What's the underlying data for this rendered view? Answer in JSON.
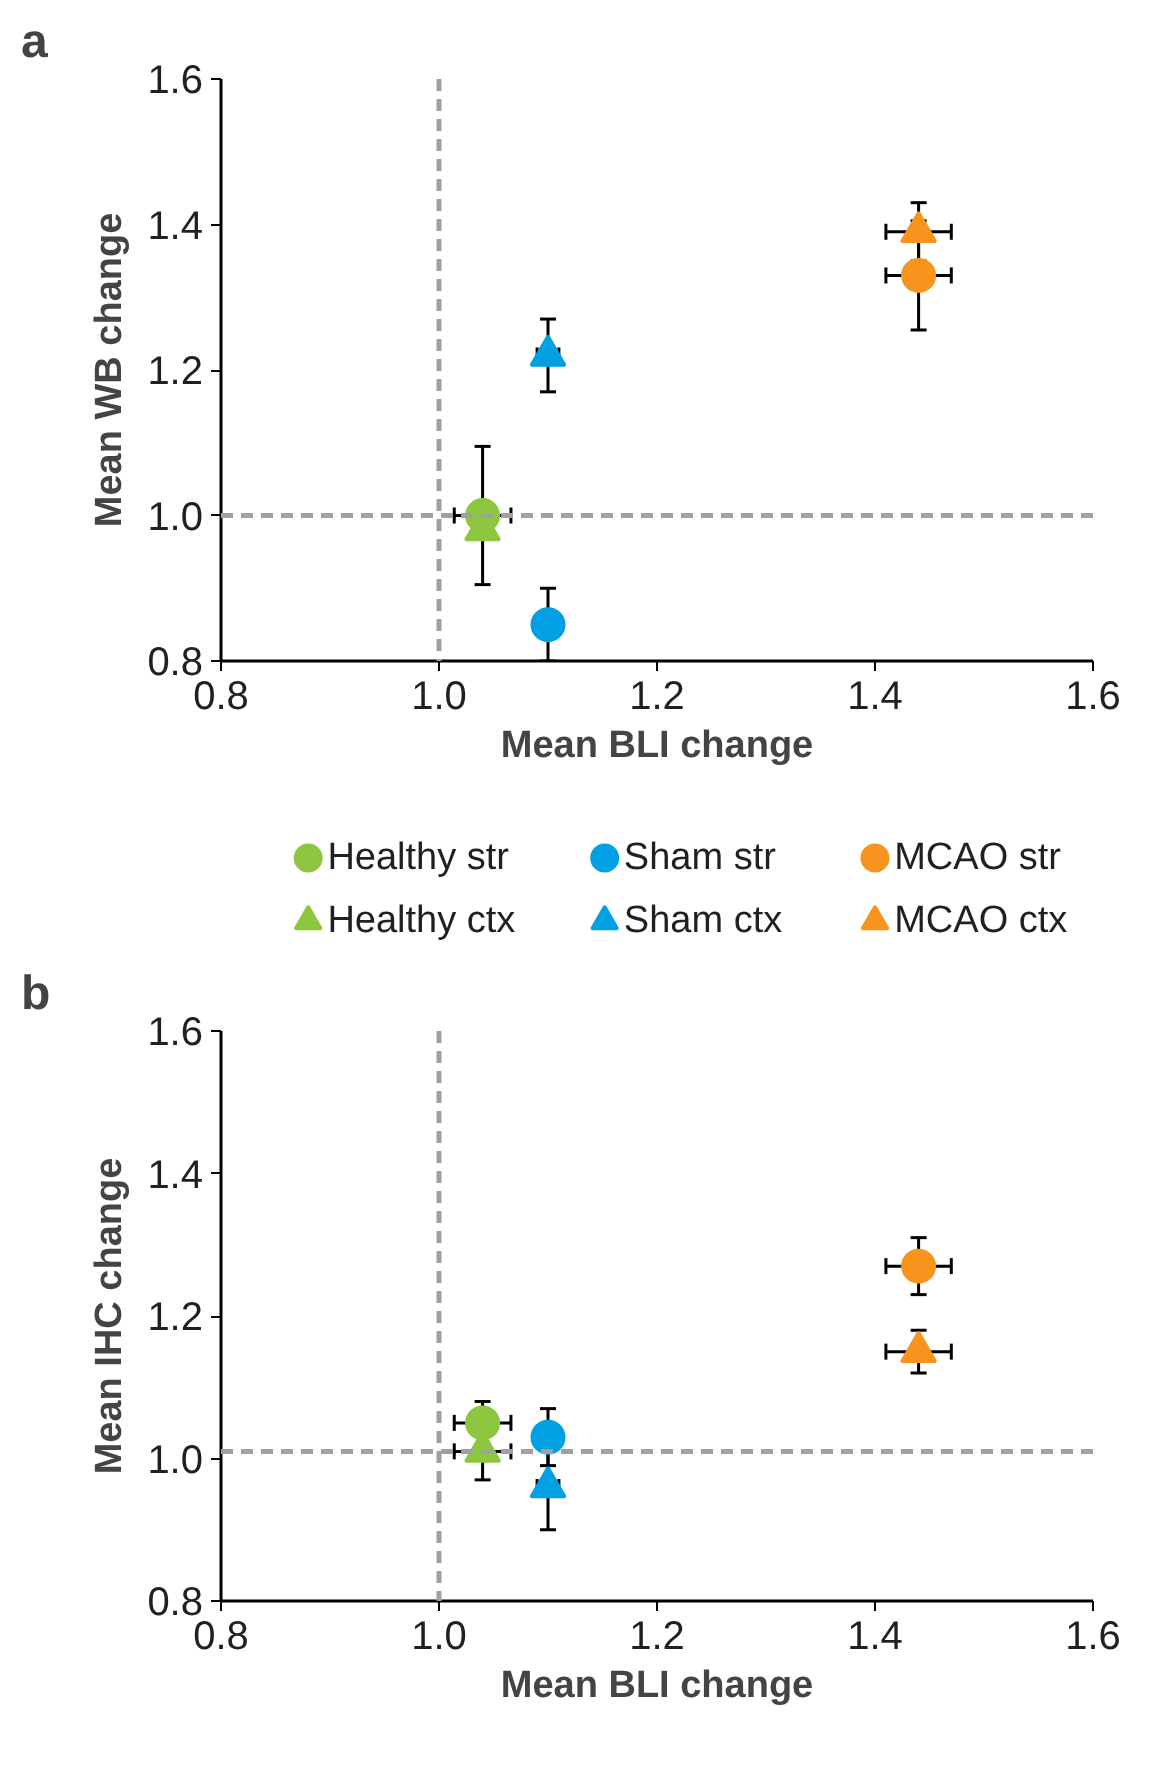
{
  "chart_data": [
    {
      "type": "scatter",
      "title": "a",
      "xlabel": "Mean BLI change",
      "ylabel": "Mean WB change",
      "xlim": [
        0.8,
        1.6
      ],
      "ylim": [
        0.8,
        1.6
      ],
      "xticks": [
        {
          "value": 0.8,
          "label": "0.8"
        },
        {
          "value": 1.0,
          "label": "1.0"
        },
        {
          "value": 1.2,
          "label": "1.2"
        },
        {
          "value": 1.4,
          "label": "1.4"
        },
        {
          "value": 1.6,
          "label": "1.6"
        }
      ],
      "yticks": [
        {
          "value": 0.8,
          "label": "0.8"
        },
        {
          "value": 1.0,
          "label": "1.0"
        },
        {
          "value": 1.2,
          "label": "1.2"
        },
        {
          "value": 1.4,
          "label": "1.4"
        },
        {
          "value": 1.6,
          "label": "1.6"
        }
      ],
      "grid": false,
      "legend": "bottom",
      "ref_lines": [
        {
          "axis": "x",
          "value": 1.0,
          "color": "#a0a0a0",
          "line_style": "dashed"
        },
        {
          "axis": "y",
          "value": 1.0,
          "color": "#a0a0a0",
          "line_style": "dashed"
        }
      ],
      "series": [
        {
          "name": "Healthy str",
          "color": "#8dc63f",
          "marker": "circle",
          "x": [
            1.04
          ],
          "values": [
            1.0
          ],
          "errors": [
            0.095
          ],
          "xerrors": [
            0.026
          ]
        },
        {
          "name": "Healthy ctx",
          "color": "#8dc63f",
          "marker": "triangle",
          "x": [
            1.04
          ],
          "values": [
            0.98
          ],
          "errors": [
            null
          ],
          "xerrors": [
            null
          ]
        },
        {
          "name": "Sham str",
          "color": "#00a0e3",
          "marker": "circle",
          "x": [
            1.1
          ],
          "values": [
            0.85
          ],
          "errors": [
            0.05
          ],
          "xerrors": [
            null
          ]
        },
        {
          "name": "Sham ctx",
          "color": "#00a0e3",
          "marker": "triangle",
          "x": [
            1.1
          ],
          "values": [
            1.22
          ],
          "errors": [
            0.05
          ],
          "xerrors": [
            0.01
          ]
        },
        {
          "name": "MCAO str",
          "color": "#f7941d",
          "marker": "circle",
          "x": [
            1.44
          ],
          "values": [
            1.33
          ],
          "errors": [
            0.075
          ],
          "xerrors": [
            0.03
          ]
        },
        {
          "name": "MCAO ctx",
          "color": "#f7941d",
          "marker": "triangle",
          "x": [
            1.44
          ],
          "values": [
            1.39
          ],
          "errors": [
            0.04
          ],
          "xerrors": [
            0.03
          ]
        }
      ]
    },
    {
      "type": "scatter",
      "title": "b",
      "xlabel": "Mean BLI change",
      "ylabel": "Mean IHC change",
      "xlim": [
        0.8,
        1.6
      ],
      "ylim": [
        0.8,
        1.6
      ],
      "xticks": [
        {
          "value": 0.8,
          "label": "0.8"
        },
        {
          "value": 1.0,
          "label": "1.0"
        },
        {
          "value": 1.2,
          "label": "1.2"
        },
        {
          "value": 1.4,
          "label": "1.4"
        },
        {
          "value": 1.6,
          "label": "1.6"
        }
      ],
      "yticks": [
        {
          "value": 0.8,
          "label": "0.8"
        },
        {
          "value": 1.0,
          "label": "1.0"
        },
        {
          "value": 1.2,
          "label": "1.2"
        },
        {
          "value": 1.4,
          "label": "1.4"
        },
        {
          "value": 1.6,
          "label": "1.6"
        }
      ],
      "grid": false,
      "legend": false,
      "ref_lines": [
        {
          "axis": "x",
          "value": 1.0,
          "color": "#a0a0a0",
          "line_style": "dashed"
        },
        {
          "axis": "y",
          "value": 1.01,
          "color": "#a0a0a0",
          "line_style": "dashed"
        }
      ],
      "series": [
        {
          "color": "#8dc63f",
          "marker": "circle",
          "x": [
            1.04
          ],
          "values": [
            1.05
          ],
          "errors": [
            0.03
          ],
          "xerrors": [
            0.026
          ]
        },
        {
          "color": "#8dc63f",
          "marker": "triangle",
          "x": [
            1.04
          ],
          "values": [
            1.01
          ],
          "errors": [
            0.04
          ],
          "xerrors": [
            0.026
          ]
        },
        {
          "color": "#00a0e3",
          "marker": "circle",
          "x": [
            1.1
          ],
          "values": [
            1.03
          ],
          "errors": [
            0.04
          ],
          "xerrors": [
            null
          ]
        },
        {
          "color": "#00a0e3",
          "marker": "triangle",
          "x": [
            1.1
          ],
          "values": [
            0.96
          ],
          "errors": [
            0.06
          ],
          "xerrors": [
            0.01
          ]
        },
        {
          "color": "#f7941d",
          "marker": "circle",
          "x": [
            1.44
          ],
          "values": [
            1.27
          ],
          "errors": [
            0.04
          ],
          "xerrors": [
            0.03
          ]
        },
        {
          "color": "#f7941d",
          "marker": "triangle",
          "x": [
            1.44
          ],
          "values": [
            1.15
          ],
          "errors": [
            0.03
          ],
          "xerrors": [
            0.03
          ]
        }
      ]
    }
  ]
}
